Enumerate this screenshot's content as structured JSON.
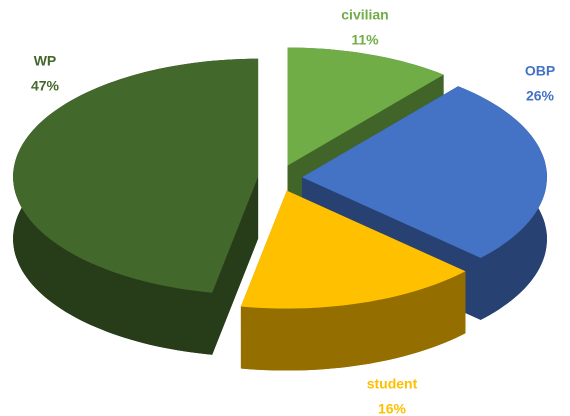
{
  "chart_data": {
    "type": "pie",
    "categories": [
      "civilian",
      "OBP",
      "student",
      "WP"
    ],
    "values": [
      11,
      26,
      16,
      47
    ],
    "value_labels": [
      "11%",
      "26%",
      "16%",
      "47%"
    ],
    "colors": [
      "#70ad47",
      "#4472c4",
      "#ffc000",
      "#43682b"
    ],
    "exploded": true,
    "three_d": true
  }
}
